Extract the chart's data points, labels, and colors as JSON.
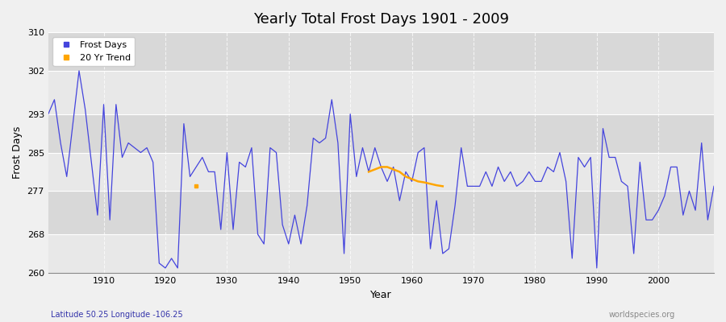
{
  "title": "Yearly Total Frost Days 1901 - 2009",
  "xlabel": "Year",
  "ylabel": "Frost Days",
  "xlim": [
    1901,
    2009
  ],
  "ylim": [
    260,
    310
  ],
  "yticks": [
    260,
    268,
    277,
    285,
    293,
    302,
    310
  ],
  "xticks": [
    1910,
    1920,
    1930,
    1940,
    1950,
    1960,
    1970,
    1980,
    1990,
    2000
  ],
  "line_color": "#4444dd",
  "trend_color": "#FFA500",
  "fig_bg_color": "#f0f0f0",
  "band_colors": [
    "#e8e8e8",
    "#d8d8d8"
  ],
  "grid_color": "#ffffff",
  "subtitle_left": "Latitude 50.25 Longitude -106.25",
  "subtitle_right": "worldspecies.org",
  "legend_frost": "Frost Days",
  "legend_trend": "20 Yr Trend",
  "years": [
    1901,
    1902,
    1903,
    1904,
    1905,
    1906,
    1907,
    1908,
    1909,
    1910,
    1911,
    1912,
    1913,
    1914,
    1915,
    1916,
    1917,
    1918,
    1919,
    1920,
    1921,
    1922,
    1923,
    1924,
    1925,
    1926,
    1927,
    1928,
    1929,
    1930,
    1931,
    1932,
    1933,
    1934,
    1935,
    1936,
    1937,
    1938,
    1939,
    1940,
    1941,
    1942,
    1943,
    1944,
    1945,
    1946,
    1947,
    1948,
    1949,
    1950,
    1951,
    1952,
    1953,
    1954,
    1955,
    1956,
    1957,
    1958,
    1959,
    1960,
    1961,
    1962,
    1963,
    1964,
    1965,
    1966,
    1967,
    1968,
    1969,
    1970,
    1971,
    1972,
    1973,
    1974,
    1975,
    1976,
    1977,
    1978,
    1979,
    1980,
    1981,
    1982,
    1983,
    1984,
    1985,
    1986,
    1987,
    1988,
    1989,
    1990,
    1991,
    1992,
    1993,
    1994,
    1995,
    1996,
    1997,
    1998,
    1999,
    2000,
    2001,
    2002,
    2003,
    2004,
    2005,
    2006,
    2007,
    2008,
    2009
  ],
  "frost_days": [
    293,
    296,
    287,
    280,
    291,
    302,
    294,
    283,
    272,
    295,
    271,
    295,
    284,
    287,
    286,
    285,
    286,
    283,
    262,
    261,
    263,
    261,
    291,
    280,
    282,
    284,
    281,
    281,
    269,
    285,
    269,
    283,
    282,
    286,
    268,
    266,
    286,
    285,
    270,
    266,
    272,
    266,
    274,
    288,
    287,
    288,
    296,
    287,
    264,
    293,
    280,
    286,
    281,
    286,
    282,
    279,
    282,
    275,
    281,
    279,
    285,
    286,
    265,
    275,
    264,
    265,
    274,
    286,
    278,
    278,
    278,
    281,
    278,
    282,
    279,
    281,
    278,
    279,
    281,
    279,
    279,
    282,
    281,
    285,
    279,
    263,
    284,
    282,
    284,
    261,
    290,
    284,
    284,
    279,
    278,
    264,
    283,
    271,
    271,
    273,
    276,
    282,
    282,
    272,
    277,
    273,
    287,
    271,
    278
  ],
  "trend_years": [
    1953,
    1954,
    1955,
    1956,
    1957,
    1958,
    1959,
    1960,
    1961,
    1962,
    1963,
    1964,
    1965
  ],
  "trend_values": [
    281.0,
    281.5,
    282.0,
    282.0,
    281.5,
    281.0,
    280.0,
    279.5,
    279.0,
    278.8,
    278.5,
    278.2,
    278.0
  ],
  "trend_dot_year": 1925,
  "trend_dot_value": 278
}
